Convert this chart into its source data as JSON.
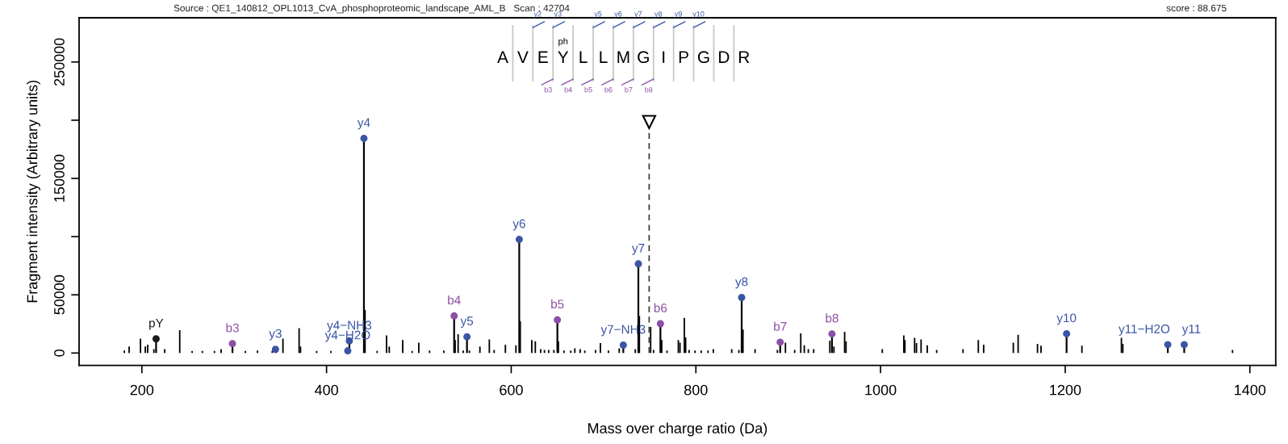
{
  "chart_data": {
    "type": "lollipop",
    "xlabel": "Mass over charge ratio (Da)",
    "ylabel": "Fragment intensity (Arbitrary units)",
    "xlim": [
      132,
      1428
    ],
    "ylim": [
      -10600,
      288000
    ],
    "xticks": [
      200,
      400,
      600,
      800,
      1000,
      1200,
      1400
    ],
    "yticks": [
      0,
      50000,
      {
        "value": 100000,
        "label": null
      },
      150000,
      {
        "value": 200000,
        "label": null
      },
      250000
    ],
    "grid": false,
    "legend": false,
    "marker": "circle",
    "annotations": [
      "Source : QE1_140812_OPL1013_CvA_phosphoproteomic_landscape_AML_B   Scan : 42704",
      "score : 88.675",
      "AVEYLLMGIPGDR",
      "ph",
      "y2",
      "y3",
      "y5",
      "y6",
      "y7",
      "y8",
      "y9",
      "y10",
      "b3",
      "b4",
      "b5",
      "b6",
      "b7",
      "b8"
    ],
    "ref_lines": [
      {
        "axis": "x",
        "value": 749.4,
        "label": null,
        "color": "#404040",
        "line_style": "dashed"
      }
    ],
    "series": [
      {
        "color": "#3a55a4",
        "x": [
          344.7,
          423.0,
          424.7,
          440.5,
          552.1,
          608.7,
          721.4,
          737.7,
          849.6,
          1201.5,
          1311.1,
          1328.9
        ],
        "values": [
          3200,
          1900,
          10400,
          184400,
          14000,
          97600,
          6800,
          76600,
          47700,
          16600,
          7200,
          7200
        ],
        "value_labels": [
          "y3",
          "y4−H2O",
          "y4−NH3",
          "y4",
          "y5",
          "y6",
          "y7−NH3",
          "y7",
          "y8",
          "y10",
          "y11−H2O",
          "y11"
        ]
      },
      {
        "color": "#8b4fa6",
        "x": [
          298.1,
          538.2,
          650.0,
          761.6,
          891.3,
          947.4
        ],
        "values": [
          8100,
          31900,
          28500,
          25200,
          9300,
          16400
        ],
        "value_labels": [
          "b3",
          "b4",
          "b5",
          "b6",
          "b7",
          "b8"
        ]
      },
      {
        "color": "#1a1a1a",
        "x": [
          215.4
        ],
        "values": [
          12200
        ],
        "value_labels": [
          "pY"
        ]
      },
      {
        "type": "bar",
        "color": "#000000",
        "x": [
          181.0,
          186.2,
          198.5,
          203.7,
          206.3,
          213.0,
          224.7,
          241.0,
          254.4,
          265.5,
          278.6,
          285.8,
          296.9,
          312.1,
          325.2,
          341.2,
          352.8,
          370.3,
          371.8,
          389.3,
          404.7,
          441.7,
          454.8,
          465.0,
          467.9,
          482.5,
          492.7,
          499.9,
          511.6,
          527.0,
          539.3,
          542.5,
          548.0,
          554.7,
          566.1,
          576.3,
          581.5,
          593.7,
          605.1,
          609.8,
          622.3,
          626.1,
          631.9,
          636.0,
          640.6,
          646.2,
          651.1,
          657.2,
          664.5,
          668.9,
          674.7,
          679.7,
          691.3,
          696.6,
          705.3,
          717.0,
          734.4,
          738.8,
          749.0,
          751.0,
          754.2,
          763.0,
          768.8,
          781.0,
          782.8,
          787.5,
          788.9,
          792.7,
          799.1,
          805.8,
          813.1,
          818.9,
          838.8,
          846.6,
          851.0,
          864.1,
          888.3,
          897.0,
          907.0,
          913.6,
          917.4,
          921.8,
          927.6,
          945.1,
          949.5,
          961.1,
          962.6,
          1001.9,
          1025.2,
          1026.4,
          1036.9,
          1038.9,
          1043.9,
          1050.6,
          1060.8,
          1089.3,
          1105.9,
          1111.7,
          1143.8,
          1149.0,
          1170.0,
          1173.8,
          1218.1,
          1260.9,
          1262.4,
          1381.2
        ],
        "values": [
          2200,
          5600,
          12300,
          5600,
          7200,
          3400,
          3400,
          19700,
          1800,
          1800,
          1800,
          3400,
          null,
          1800,
          2200,
          1800,
          12300,
          21300,
          5600,
          1800,
          1800,
          36900,
          1800,
          15200,
          5600,
          11200,
          1800,
          8900,
          2200,
          2200,
          11200,
          16100,
          2200,
          2200,
          5600,
          11600,
          2700,
          7200,
          6700,
          27300,
          11200,
          10100,
          3400,
          2700,
          2700,
          2700,
          10100,
          2200,
          2200,
          4000,
          3400,
          2200,
          2700,
          8500,
          2200,
          4000,
          3400,
          31800,
          null,
          22400,
          2700,
          11200,
          2200,
          11200,
          8900,
          30200,
          13400,
          2700,
          2200,
          2200,
          2200,
          3400,
          3400,
          2700,
          20100,
          3400,
          2700,
          8900,
          2700,
          16800,
          6700,
          3400,
          3400,
          10700,
          5600,
          18300,
          10100,
          3400,
          15200,
          11200,
          13000,
          8500,
          11600,
          6700,
          2700,
          3400,
          11200,
          7200,
          8900,
          15700,
          7800,
          6300,
          6300,
          13000,
          7800,
          2700
        ]
      }
    ]
  }
}
